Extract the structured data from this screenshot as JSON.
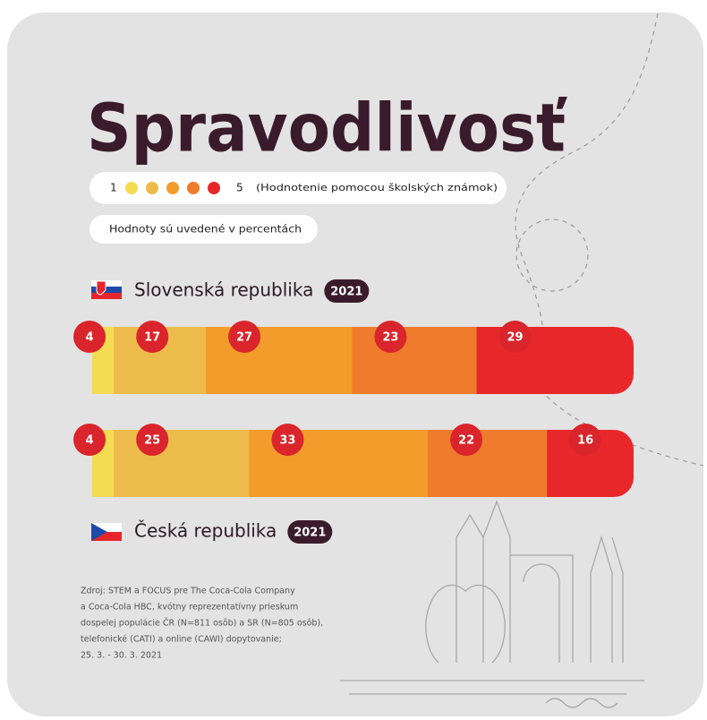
{
  "chart_data": {
    "type": "bar",
    "orientation": "horizontal",
    "stacked": true,
    "title": "Spravodlivosť",
    "legend": {
      "low": "1",
      "high": "5",
      "note": "(Hodnotenie pomocou školských známok)"
    },
    "subtitle": "Hodnoty sú uvedené v percentách",
    "categories": [
      "Slovenská republika",
      "Česká republika"
    ],
    "years": [
      "2021",
      "2021"
    ],
    "series": [
      {
        "color": "#f3dc52",
        "values": [
          4,
          4
        ]
      },
      {
        "color": "#edbb4b",
        "values": [
          17,
          25
        ]
      },
      {
        "color": "#f39c2b",
        "values": [
          27,
          33
        ]
      },
      {
        "color": "#ef7b2c",
        "values": [
          23,
          22
        ]
      },
      {
        "color": "#e8272b",
        "values": [
          29,
          16
        ]
      }
    ],
    "source": [
      "Zdroj: STEM a FOCUS pre The Coca-Cola Company",
      "a Coca-Cola HBC, kvótny reprezentatívny prieskum",
      "dospelej populácie ČR (N=811 osôb) a SR (N=805 osôb),",
      "telefonické (CATI) a online (CAWI) dopytovanie;",
      "25. 3. - 30. 3. 2021"
    ]
  }
}
